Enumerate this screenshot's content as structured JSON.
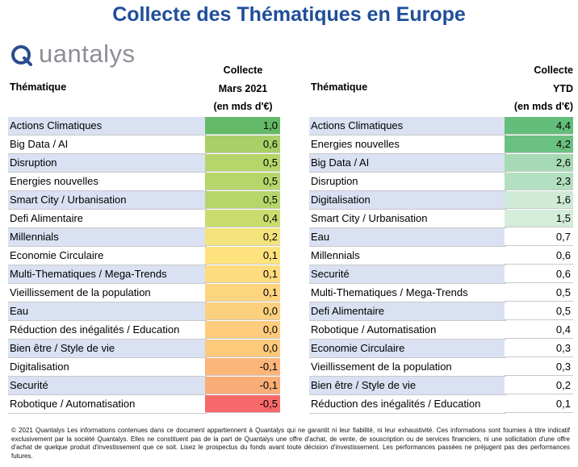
{
  "title": "Collecte des Thématiques en Europe",
  "logo": {
    "text": "uantalys",
    "icon": "quantalys-q-logo"
  },
  "left_table": {
    "col1_header": "Thématique",
    "col2_header": [
      "Collecte",
      "Mars 2021",
      "(en mds d'€)"
    ]
  },
  "right_table": {
    "col1_header": "Thématique",
    "col2_header": [
      "Collecte",
      "YTD",
      "(en mds d'€)"
    ]
  },
  "chart_data": [
    {
      "type": "table",
      "title": "Collecte des Thématiques en Europe",
      "columns": [
        "Thématique",
        "Collecte Mars 2021 (en mds d'€)"
      ],
      "rows": [
        {
          "label": "Actions Climatiques",
          "value": 1.0,
          "text": "1,0",
          "color": "#64b968"
        },
        {
          "label": "Big Data / AI",
          "value": 0.6,
          "text": "0,6",
          "color": "#a7d168"
        },
        {
          "label": "Disruption",
          "value": 0.5,
          "text": "0,5",
          "color": "#b5d66a"
        },
        {
          "label": "Energies nouvelles",
          "value": 0.5,
          "text": "0,5",
          "color": "#b5d66a"
        },
        {
          "label": "Smart City / Urbanisation",
          "value": 0.5,
          "text": "0,5",
          "color": "#b5d66a"
        },
        {
          "label": "Defi Alimentaire",
          "value": 0.4,
          "text": "0,4",
          "color": "#cbdc6e"
        },
        {
          "label": "Millennials",
          "value": 0.2,
          "text": "0,2",
          "color": "#f3e37c"
        },
        {
          "label": "Economie Circulaire",
          "value": 0.1,
          "text": "0,1",
          "color": "#fde27d"
        },
        {
          "label": "Multi-Thematiques / Mega-Trends",
          "value": 0.1,
          "text": "0,1",
          "color": "#fedb7e"
        },
        {
          "label": "Vieillissement de la population",
          "value": 0.1,
          "text": "0,1",
          "color": "#fed57f"
        },
        {
          "label": "Eau",
          "value": 0.0,
          "text": "0,0",
          "color": "#fdd07d"
        },
        {
          "label": "Réduction des inégalités / Education",
          "value": 0.0,
          "text": "0,0",
          "color": "#fdcc7c"
        },
        {
          "label": "Bien être / Style de vie",
          "value": 0.0,
          "text": "0,0",
          "color": "#fdc97b"
        },
        {
          "label": "Digitalisation",
          "value": -0.1,
          "text": "-0,1",
          "color": "#fcb679"
        },
        {
          "label": "Securité",
          "value": -0.1,
          "text": "-0,1",
          "color": "#fbad77"
        },
        {
          "label": "Robotique / Automatisation",
          "value": -0.5,
          "text": "-0,5",
          "color": "#f8696b"
        }
      ]
    },
    {
      "type": "table",
      "title": "Collecte des Thématiques en Europe",
      "columns": [
        "Thématique",
        "Collecte YTD (en mds d'€)"
      ],
      "rows": [
        {
          "label": "Actions Climatiques",
          "value": 4.4,
          "text": "4,4",
          "color": "#63be7b"
        },
        {
          "label": "Energies nouvelles",
          "value": 4.2,
          "text": "4,2",
          "color": "#6bc181"
        },
        {
          "label": "Big Data / AI",
          "value": 2.6,
          "text": "2,6",
          "color": "#a6dab4"
        },
        {
          "label": "Disruption",
          "value": 2.3,
          "text": "2,3",
          "color": "#b3e0c0"
        },
        {
          "label": "Digitalisation",
          "value": 1.6,
          "text": "1,6",
          "color": "#cfebd7"
        },
        {
          "label": "Smart City / Urbanisation",
          "value": 1.5,
          "text": "1,5",
          "color": "#d4eddb"
        },
        {
          "label": "Eau",
          "value": 0.7,
          "text": "0,7",
          "color": "#ffffff"
        },
        {
          "label": "Millennials",
          "value": 0.6,
          "text": "0,6",
          "color": "#ffffff"
        },
        {
          "label": "Securité",
          "value": 0.6,
          "text": "0,6",
          "color": "#ffffff"
        },
        {
          "label": "Multi-Thematiques / Mega-Trends",
          "value": 0.5,
          "text": "0,5",
          "color": "#ffffff"
        },
        {
          "label": "Defi Alimentaire",
          "value": 0.5,
          "text": "0,5",
          "color": "#ffffff"
        },
        {
          "label": "Robotique / Automatisation",
          "value": 0.4,
          "text": "0,4",
          "color": "#ffffff"
        },
        {
          "label": "Economie Circulaire",
          "value": 0.3,
          "text": "0,3",
          "color": "#ffffff"
        },
        {
          "label": "Vieillissement de la population",
          "value": 0.3,
          "text": "0,3",
          "color": "#ffffff"
        },
        {
          "label": "Bien être / Style de vie",
          "value": 0.2,
          "text": "0,2",
          "color": "#ffffff"
        },
        {
          "label": "Réduction des inégalités / Education",
          "value": 0.1,
          "text": "0,1",
          "color": "#ffffff"
        }
      ]
    }
  ],
  "row_colors": {
    "even": "#d9e1f2",
    "odd": "#ffffff"
  },
  "footer": "© 2021 Quantalys Les informations contenues dans ce document appartiennent à Quantalys qui ne garantit ni leur fiabilité, ni leur exhaustivité. Ces informations sont fournies à titre indicatif exclusivement par la société Quantalys. Elles ne constituent pas de la part de Quantalys une offre d'achat, de vente, de souscription ou de services financiers, ni une sollicitation d'une offre d'achat de quelque produit d'investissement que ce soit. Lisez le prospectus du fonds avant toute décision d'investissement. Les performances passées ne préjugent pas des performances futures."
}
